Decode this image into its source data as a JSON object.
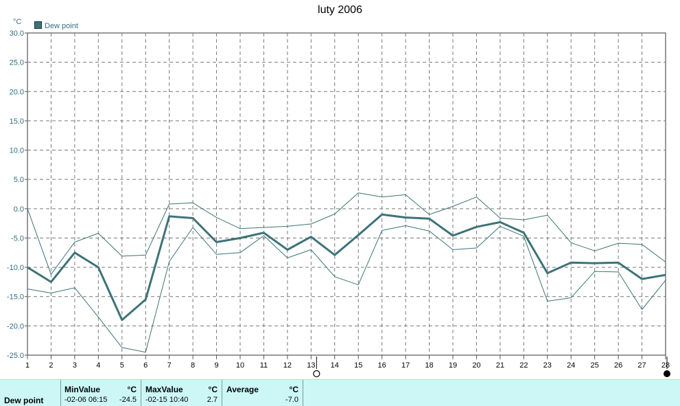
{
  "chart_data": {
    "type": "line",
    "title": "luty 2006",
    "ylabel": "°C",
    "xlabel": "",
    "ylim": [
      -25,
      30
    ],
    "yticks": [
      "30.0",
      "25.0",
      "20.0",
      "15.0",
      "10.0",
      "5.0",
      "0.0",
      "-5.0",
      "-10.0",
      "-15.0",
      "-20.0",
      "-25.0"
    ],
    "x": [
      1,
      2,
      3,
      4,
      5,
      6,
      7,
      8,
      9,
      10,
      11,
      12,
      13,
      14,
      15,
      16,
      17,
      18,
      19,
      20,
      21,
      22,
      23,
      24,
      25,
      26,
      27,
      28
    ],
    "grid": true,
    "legend": "top-left",
    "series": [
      {
        "name": "Dew point",
        "role": "average",
        "color": "#3d7377",
        "values": [
          -10.0,
          -12.5,
          -7.5,
          -10.0,
          -19.0,
          -15.5,
          -1.3,
          -1.6,
          -5.7,
          -5.0,
          -4.1,
          -7.0,
          -4.8,
          -7.9,
          -4.5,
          -1.0,
          -1.5,
          -1.7,
          -4.6,
          -3.1,
          -2.3,
          -4.1,
          -11.0,
          -9.2,
          -9.3,
          -9.2,
          -12.0,
          -11.3
        ]
      },
      {
        "role": "max",
        "color": "#3d7377",
        "values": [
          0.0,
          -11.2,
          -5.7,
          -4.2,
          -8.1,
          -7.9,
          0.8,
          1.0,
          -1.5,
          -3.4,
          -3.2,
          -3.0,
          -2.6,
          -0.9,
          2.7,
          2.0,
          2.4,
          -1.0,
          0.4,
          2.0,
          -1.6,
          -1.9,
          -1.1,
          -5.8,
          -7.2,
          -5.9,
          -6.1,
          -9.1
        ]
      },
      {
        "role": "min",
        "color": "#3d7377",
        "values": [
          -13.7,
          -14.4,
          -13.5,
          -18.5,
          -23.7,
          -24.5,
          -9.0,
          -3.2,
          -7.8,
          -7.5,
          -4.6,
          -8.4,
          -7.0,
          -11.6,
          -13.0,
          -3.7,
          -2.9,
          -3.8,
          -7.0,
          -6.7,
          -3.0,
          -4.7,
          -15.8,
          -15.2,
          -10.7,
          -10.8,
          -17.2,
          -12.2
        ]
      }
    ],
    "unit": "°C"
  },
  "legend": {
    "label": "Dew point"
  },
  "stats": {
    "row_label": "Dew point",
    "min_header": "MinValue",
    "min_unit": "°C",
    "min_time": "-02-06  06:15",
    "min_value": "-24.5",
    "max_header": "MaxValue",
    "max_unit": "°C",
    "max_time": "-02-15  10:40",
    "max_value": "2.7",
    "avg_header": "Average",
    "avg_unit": "°C",
    "avg_value": "-7.0"
  }
}
